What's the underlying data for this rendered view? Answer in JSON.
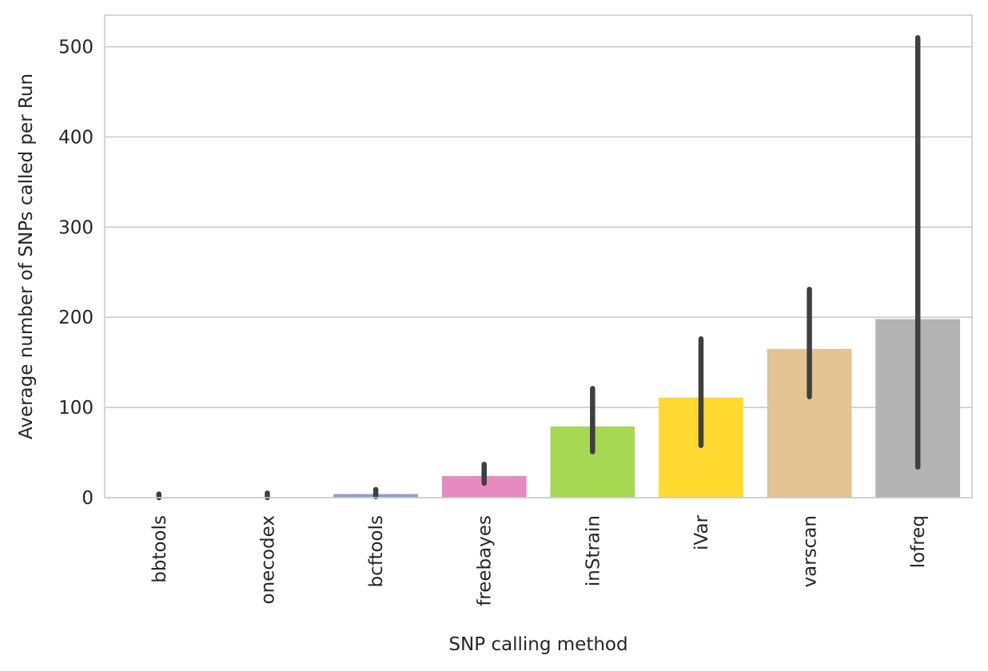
{
  "chart_data": {
    "type": "bar",
    "xlabel": "SNP calling method",
    "ylabel": "Average number of SNPs called per Run",
    "ylim": [
      0,
      535
    ],
    "yticks": [
      0,
      100,
      200,
      300,
      400,
      500
    ],
    "grid": true,
    "categories": [
      "bbtools",
      "onecodex",
      "bcftools",
      "freebayes",
      "inStrain",
      "iVar",
      "varscan",
      "lofreq"
    ],
    "values": [
      0.5,
      0.5,
      4,
      24,
      79,
      111,
      165,
      198
    ],
    "error_low": [
      0,
      0,
      1,
      16,
      51,
      58,
      112,
      34
    ],
    "error_high": [
      4,
      5,
      9,
      37,
      121,
      176,
      231,
      510
    ],
    "colors": [
      "#66c2a5",
      "#fc8d62",
      "#8da0cb",
      "#e78ac3",
      "#a6d854",
      "#ffd92f",
      "#e5c494",
      "#b3b3b3"
    ]
  }
}
